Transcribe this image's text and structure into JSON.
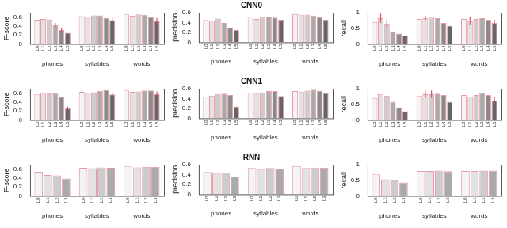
{
  "chart_data": [
    {
      "type": "bar",
      "y_label": "F-score",
      "categories": [
        "phones",
        "syllables",
        "words"
      ],
      "ylim": [
        0,
        0.7
      ],
      "yticks": [
        0,
        0.2,
        0.4,
        0.6
      ],
      "grid": false,
      "series": [
        {
          "name": "L0",
          "color": "#f4f4f4",
          "values": [
            0.54,
            0.62,
            0.66
          ],
          "errors": [
            null,
            null,
            null
          ]
        },
        {
          "name": "L1",
          "color": "#e2e2e2",
          "values": [
            0.56,
            0.61,
            0.63
          ],
          "errors": [
            null,
            null,
            null
          ]
        },
        {
          "name": "L2",
          "color": "#cccccc",
          "values": [
            0.55,
            0.64,
            0.66
          ],
          "errors": [
            null,
            null,
            null
          ]
        },
        {
          "name": "L3",
          "color": "#aaaaaa",
          "values": [
            0.42,
            0.64,
            0.65
          ],
          "errors": [
            0.05,
            null,
            null
          ]
        },
        {
          "name": "L4",
          "color": "#8a8a8a",
          "values": [
            0.31,
            0.58,
            0.6
          ],
          "errors": [
            0.04,
            null,
            null
          ]
        },
        {
          "name": "L5",
          "color": "#666666",
          "values": [
            0.25,
            0.53,
            0.52
          ],
          "errors": [
            null,
            0.05,
            0.06
          ]
        }
      ]
    },
    {
      "type": "bar",
      "title": "CNN0",
      "y_label": "precision",
      "categories": [
        "phones",
        "syllables",
        "words"
      ],
      "ylim": [
        0,
        0.6
      ],
      "yticks": [
        0,
        0.2,
        0.4,
        0.6
      ],
      "grid": false,
      "series": [
        {
          "name": "L0",
          "color": "#f4f4f4",
          "values": [
            0.45,
            0.52,
            0.57
          ],
          "errors": [
            null,
            null,
            null
          ]
        },
        {
          "name": "L1",
          "color": "#e2e2e2",
          "values": [
            0.43,
            0.47,
            0.56
          ],
          "errors": [
            null,
            null,
            null
          ]
        },
        {
          "name": "L2",
          "color": "#cccccc",
          "values": [
            0.48,
            0.51,
            0.56
          ],
          "errors": [
            null,
            null,
            null
          ]
        },
        {
          "name": "L3",
          "color": "#aaaaaa",
          "values": [
            0.39,
            0.52,
            0.54
          ],
          "errors": [
            null,
            null,
            null
          ]
        },
        {
          "name": "L4",
          "color": "#8a8a8a",
          "values": [
            0.3,
            0.5,
            0.51
          ],
          "errors": [
            null,
            null,
            null
          ]
        },
        {
          "name": "L5",
          "color": "#666666",
          "values": [
            0.25,
            0.46,
            0.46
          ],
          "errors": [
            null,
            null,
            null
          ]
        }
      ]
    },
    {
      "type": "bar",
      "y_label": "recall",
      "categories": [
        "phones",
        "syllables",
        "words"
      ],
      "ylim": [
        0,
        1
      ],
      "yticks": [
        0,
        0.5,
        1
      ],
      "grid": false,
      "series": [
        {
          "name": "L0",
          "color": "#f4f4f4",
          "values": [
            0.7,
            0.8,
            0.8
          ],
          "errors": [
            null,
            null,
            null
          ]
        },
        {
          "name": "L1",
          "color": "#e2e2e2",
          "values": [
            0.82,
            0.82,
            0.73
          ],
          "errors": [
            0.15,
            0.08,
            0.12
          ]
        },
        {
          "name": "L2",
          "color": "#cccccc",
          "values": [
            0.65,
            0.84,
            0.8
          ],
          "errors": [
            0.12,
            null,
            null
          ]
        },
        {
          "name": "L3",
          "color": "#aaaaaa",
          "values": [
            0.4,
            0.82,
            0.82
          ],
          "errors": [
            null,
            null,
            null
          ]
        },
        {
          "name": "L4",
          "color": "#8a8a8a",
          "values": [
            0.33,
            0.67,
            0.77
          ],
          "errors": [
            null,
            null,
            null
          ]
        },
        {
          "name": "L5",
          "color": "#666666",
          "values": [
            0.27,
            0.58,
            0.67
          ],
          "errors": [
            null,
            null,
            0.1
          ]
        }
      ]
    },
    {
      "type": "bar",
      "y_label": "F-score",
      "categories": [
        "phones",
        "syllables",
        "words"
      ],
      "ylim": [
        0,
        0.7
      ],
      "yticks": [
        0,
        0.2,
        0.4,
        0.6
      ],
      "grid": false,
      "series": [
        {
          "name": "L0",
          "color": "#f4f4f4",
          "values": [
            0.57,
            0.63,
            0.66
          ],
          "errors": [
            null,
            null,
            null
          ]
        },
        {
          "name": "L1",
          "color": "#e2e2e2",
          "values": [
            0.59,
            0.61,
            0.63
          ],
          "errors": [
            null,
            null,
            null
          ]
        },
        {
          "name": "L2",
          "color": "#cccccc",
          "values": [
            0.6,
            0.62,
            0.64
          ],
          "errors": [
            null,
            null,
            null
          ]
        },
        {
          "name": "L3",
          "color": "#aaaaaa",
          "values": [
            0.6,
            0.65,
            0.66
          ],
          "errors": [
            null,
            null,
            null
          ]
        },
        {
          "name": "L4",
          "color": "#8a8a8a",
          "values": [
            0.52,
            0.67,
            0.66
          ],
          "errors": [
            null,
            null,
            null
          ]
        },
        {
          "name": "L5",
          "color": "#666666",
          "values": [
            0.26,
            0.57,
            0.58
          ],
          "errors": [
            0.04,
            0.05,
            0.06
          ]
        }
      ]
    },
    {
      "type": "bar",
      "title": "CNN1",
      "y_label": "precision",
      "categories": [
        "phones",
        "syllables",
        "words"
      ],
      "ylim": [
        0,
        0.6
      ],
      "yticks": [
        0,
        0.2,
        0.4,
        0.6
      ],
      "grid": false,
      "series": [
        {
          "name": "L0",
          "color": "#f4f4f4",
          "values": [
            0.44,
            0.52,
            0.55
          ],
          "errors": [
            null,
            null,
            null
          ]
        },
        {
          "name": "L1",
          "color": "#e2e2e2",
          "values": [
            0.46,
            0.5,
            0.54
          ],
          "errors": [
            null,
            null,
            null
          ]
        },
        {
          "name": "L2",
          "color": "#cccccc",
          "values": [
            0.49,
            0.52,
            0.56
          ],
          "errors": [
            null,
            null,
            null
          ]
        },
        {
          "name": "L3",
          "color": "#aaaaaa",
          "values": [
            0.5,
            0.55,
            0.58
          ],
          "errors": [
            null,
            null,
            null
          ]
        },
        {
          "name": "L4",
          "color": "#8a8a8a",
          "values": [
            0.47,
            0.55,
            0.56
          ],
          "errors": [
            null,
            null,
            null
          ]
        },
        {
          "name": "L5",
          "color": "#666666",
          "values": [
            0.24,
            0.45,
            0.51
          ],
          "errors": [
            null,
            null,
            null
          ]
        }
      ]
    },
    {
      "type": "bar",
      "y_label": "recall",
      "categories": [
        "phones",
        "syllables",
        "words"
      ],
      "ylim": [
        0,
        1
      ],
      "yticks": [
        0,
        0.5,
        1
      ],
      "grid": false,
      "series": [
        {
          "name": "L0",
          "color": "#f4f4f4",
          "values": [
            0.7,
            0.78,
            0.8
          ],
          "errors": [
            null,
            null,
            null
          ]
        },
        {
          "name": "L1",
          "color": "#e2e2e2",
          "values": [
            0.83,
            0.82,
            0.75
          ],
          "errors": [
            null,
            0.12,
            null
          ]
        },
        {
          "name": "L2",
          "color": "#cccccc",
          "values": [
            0.78,
            0.82,
            0.8
          ],
          "errors": [
            null,
            0.12,
            null
          ]
        },
        {
          "name": "L3",
          "color": "#aaaaaa",
          "values": [
            0.58,
            0.84,
            0.87
          ],
          "errors": [
            null,
            null,
            null
          ]
        },
        {
          "name": "L4",
          "color": "#8a8a8a",
          "values": [
            0.4,
            0.8,
            0.8
          ],
          "errors": [
            null,
            null,
            null
          ]
        },
        {
          "name": "L5",
          "color": "#666666",
          "values": [
            0.28,
            0.58,
            0.62
          ],
          "errors": [
            null,
            null,
            0.1
          ]
        }
      ]
    },
    {
      "type": "bar",
      "y_label": "F-score",
      "categories": [
        "phones",
        "syllables",
        "words"
      ],
      "ylim": [
        0,
        0.7
      ],
      "yticks": [
        0,
        0.2,
        0.4,
        0.6
      ],
      "grid": false,
      "series": [
        {
          "name": "L0",
          "color": "#f4f4f4",
          "values": [
            0.54,
            0.63,
            0.66
          ],
          "errors": [
            null,
            null,
            null
          ]
        },
        {
          "name": "L1",
          "color": "#e2e2e2",
          "values": [
            0.47,
            0.62,
            0.64
          ],
          "errors": [
            null,
            null,
            null
          ]
        },
        {
          "name": "L2",
          "color": "#cccccc",
          "values": [
            0.46,
            0.64,
            0.65
          ],
          "errors": [
            null,
            null,
            null
          ]
        },
        {
          "name": "L3",
          "color": "#aaaaaa",
          "values": [
            0.39,
            0.63,
            0.65
          ],
          "errors": [
            null,
            null,
            null
          ]
        }
      ]
    },
    {
      "type": "bar",
      "title": "RNN",
      "y_label": "precision",
      "categories": [
        "phones",
        "syllables",
        "words"
      ],
      "ylim": [
        0,
        0.6
      ],
      "yticks": [
        0,
        0.2,
        0.4,
        0.6
      ],
      "grid": false,
      "series": [
        {
          "name": "L0",
          "color": "#f4f4f4",
          "values": [
            0.45,
            0.53,
            0.57
          ],
          "errors": [
            null,
            null,
            null
          ]
        },
        {
          "name": "L1",
          "color": "#e2e2e2",
          "values": [
            0.43,
            0.5,
            0.53
          ],
          "errors": [
            null,
            null,
            null
          ]
        },
        {
          "name": "L2",
          "color": "#cccccc",
          "values": [
            0.43,
            0.53,
            0.54
          ],
          "errors": [
            null,
            null,
            null
          ]
        },
        {
          "name": "L3",
          "color": "#aaaaaa",
          "values": [
            0.36,
            0.52,
            0.54
          ],
          "errors": [
            null,
            null,
            null
          ]
        }
      ]
    },
    {
      "type": "bar",
      "y_label": "recall",
      "categories": [
        "phones",
        "syllables",
        "words"
      ],
      "ylim": [
        0,
        1
      ],
      "yticks": [
        0,
        0.5,
        1
      ],
      "grid": false,
      "series": [
        {
          "name": "L0",
          "color": "#f4f4f4",
          "values": [
            0.69,
            0.8,
            0.8
          ],
          "errors": [
            null,
            null,
            null
          ]
        },
        {
          "name": "L1",
          "color": "#e2e2e2",
          "values": [
            0.53,
            0.8,
            0.8
          ],
          "errors": [
            null,
            null,
            null
          ]
        },
        {
          "name": "L2",
          "color": "#cccccc",
          "values": [
            0.5,
            0.81,
            0.81
          ],
          "errors": [
            null,
            null,
            null
          ]
        },
        {
          "name": "L3",
          "color": "#aaaaaa",
          "values": [
            0.43,
            0.79,
            0.81
          ],
          "errors": [
            null,
            null,
            null
          ]
        }
      ]
    }
  ]
}
